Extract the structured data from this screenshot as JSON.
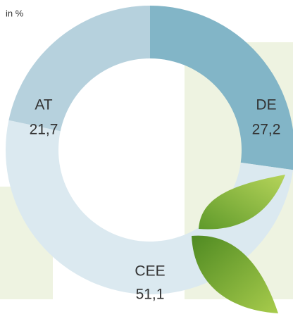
{
  "chart_data": {
    "type": "pie",
    "subtitle": "in %",
    "categories": [
      "DE",
      "CEE",
      "AT"
    ],
    "values": [
      27.2,
      51.1,
      21.7
    ],
    "value_labels": [
      "27,2",
      "51,1",
      "21,7"
    ],
    "colors": [
      "#82b5c7",
      "#dbe9f0",
      "#b6d1dd"
    ]
  }
}
